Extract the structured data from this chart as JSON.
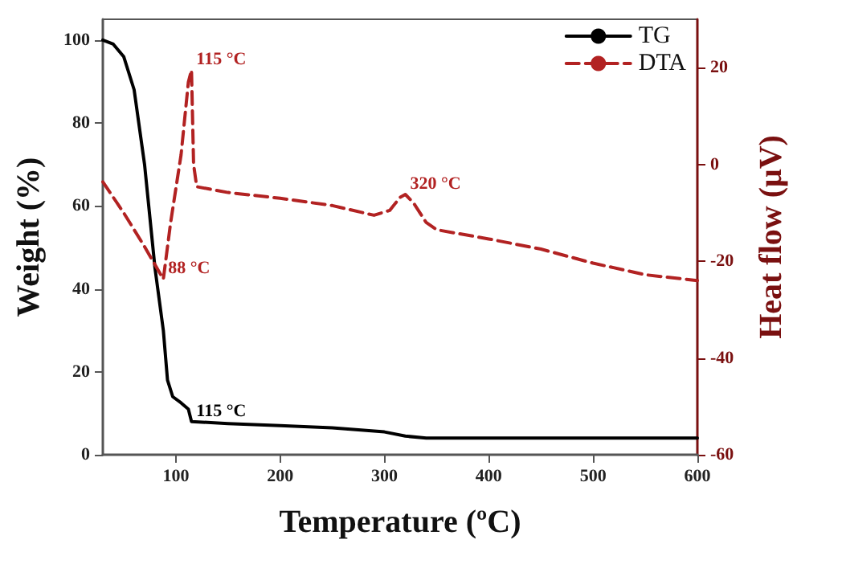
{
  "chart_data": {
    "type": "line",
    "xlabel": "Temperature (ºC)",
    "ylabel": "Weight (%)",
    "y2label": "Heat flow (μV)",
    "xlim": [
      30,
      600
    ],
    "xticks": [
      100,
      200,
      300,
      400,
      500,
      600
    ],
    "ylim": [
      0,
      105
    ],
    "yticks": [
      0,
      20,
      40,
      60,
      80,
      100
    ],
    "y2lim": [
      -60,
      30
    ],
    "y2ticks": [
      -60,
      -40,
      -20,
      0,
      20
    ],
    "grid": false,
    "legend": "top right",
    "marker": "none",
    "series": [
      {
        "name": "TG",
        "color": "#000000",
        "line_style": "solid",
        "x": [
          30,
          40,
          50,
          60,
          70,
          80,
          88,
          92,
          97,
          105,
          112,
          115,
          150,
          200,
          250,
          300,
          320,
          340,
          400,
          500,
          600
        ],
        "values": [
          100,
          99,
          96,
          88,
          70,
          45,
          30,
          18,
          14,
          12.5,
          11,
          8,
          7.5,
          7,
          6.5,
          5.5,
          4.5,
          4,
          4,
          4,
          4
        ]
      },
      {
        "name": "DTA",
        "color": "#b22222",
        "line_style": "dashed",
        "axis": "y2",
        "x": [
          30,
          50,
          70,
          88,
          95,
          105,
          112,
          115,
          117,
          120,
          150,
          200,
          250,
          290,
          305,
          315,
          320,
          328,
          340,
          350,
          400,
          450,
          500,
          550,
          600
        ],
        "values": [
          -3.6,
          -10,
          -17,
          -23.7,
          -12,
          2,
          17,
          19.5,
          0,
          -4.6,
          -5.8,
          -7,
          -8.5,
          -10.5,
          -9.5,
          -6.8,
          -6.2,
          -8,
          -12,
          -13.5,
          -15.4,
          -17.5,
          -20.4,
          -22.8,
          -24
        ]
      }
    ],
    "annotations": [
      {
        "text": "115 °C",
        "x": 115,
        "y": 92.75
      },
      {
        "text": "88 °C",
        "x": 88,
        "y": 42.35
      },
      {
        "text": "320 °C",
        "x": 320,
        "y": 62.77
      },
      {
        "text": "115 °C",
        "x": 115,
        "y": 8
      }
    ]
  }
}
